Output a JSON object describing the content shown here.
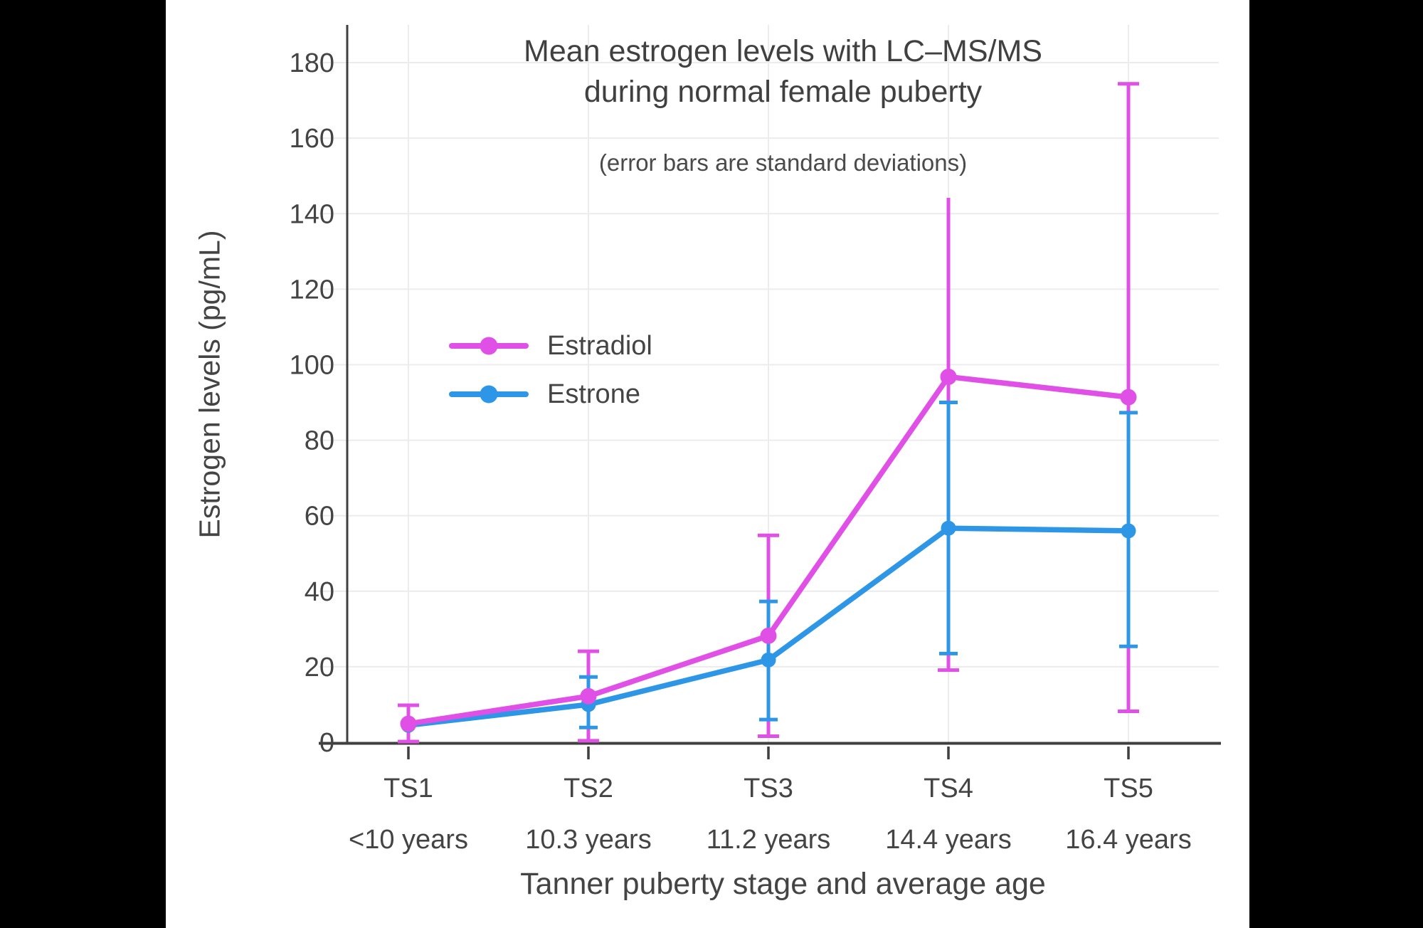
{
  "frame": {
    "background_color": "#000000",
    "panel_color": "#ffffff"
  },
  "chart_data": {
    "type": "line",
    "title_lines": [
      "Mean estrogen levels with LC–MS/MS",
      "during normal female puberty"
    ],
    "subtitle": "(error bars are standard deviations)",
    "xlabel": "Tanner puberty stage and average age",
    "ylabel": "Estrogen levels (pg/mL)",
    "x_categories": [
      {
        "stage": "TS1",
        "age": "<10 years"
      },
      {
        "stage": "TS2",
        "age": "10.3 years"
      },
      {
        "stage": "TS3",
        "age": "11.2 years"
      },
      {
        "stage": "TS4",
        "age": "14.4 years"
      },
      {
        "stage": "TS5",
        "age": "16.4 years"
      }
    ],
    "y_ticks": [
      0,
      20,
      40,
      60,
      80,
      100,
      120,
      140,
      160,
      180
    ],
    "ylim": [
      0,
      190
    ],
    "grid": true,
    "legend_position": "inside-upper-left",
    "style": {
      "axis_color": "#3f3f3f",
      "grid_color": "#ececec",
      "text_color": "#444444"
    },
    "series": [
      {
        "name": "Estradiol",
        "color": "#e150e6",
        "values": [
          4.9,
          12.2,
          28.2,
          96.8,
          91.4
        ],
        "err_low": [
          0.2,
          0.4,
          1.6,
          19.1,
          8.2
        ],
        "err_high": [
          9.8,
          24.1,
          54.8,
          144.2,
          174.4
        ],
        "top_caps": [
          true,
          true,
          true,
          false,
          true
        ],
        "bottom_caps": [
          true,
          true,
          true,
          true,
          true
        ],
        "marker_radius": 11.5,
        "cap_width": 30
      },
      {
        "name": "Estrone",
        "color": "#2e96e6",
        "values": [
          4.5,
          10.0,
          21.8,
          56.7,
          56.0
        ],
        "err_low": [
          null,
          3.9,
          6.0,
          23.5,
          25.4
        ],
        "err_high": [
          null,
          17.3,
          37.3,
          90.0,
          87.3
        ],
        "top_caps": [
          false,
          true,
          true,
          true,
          true
        ],
        "bottom_caps": [
          false,
          true,
          true,
          true,
          true
        ],
        "marker_radius": 10.5,
        "cap_width": 26
      }
    ]
  }
}
